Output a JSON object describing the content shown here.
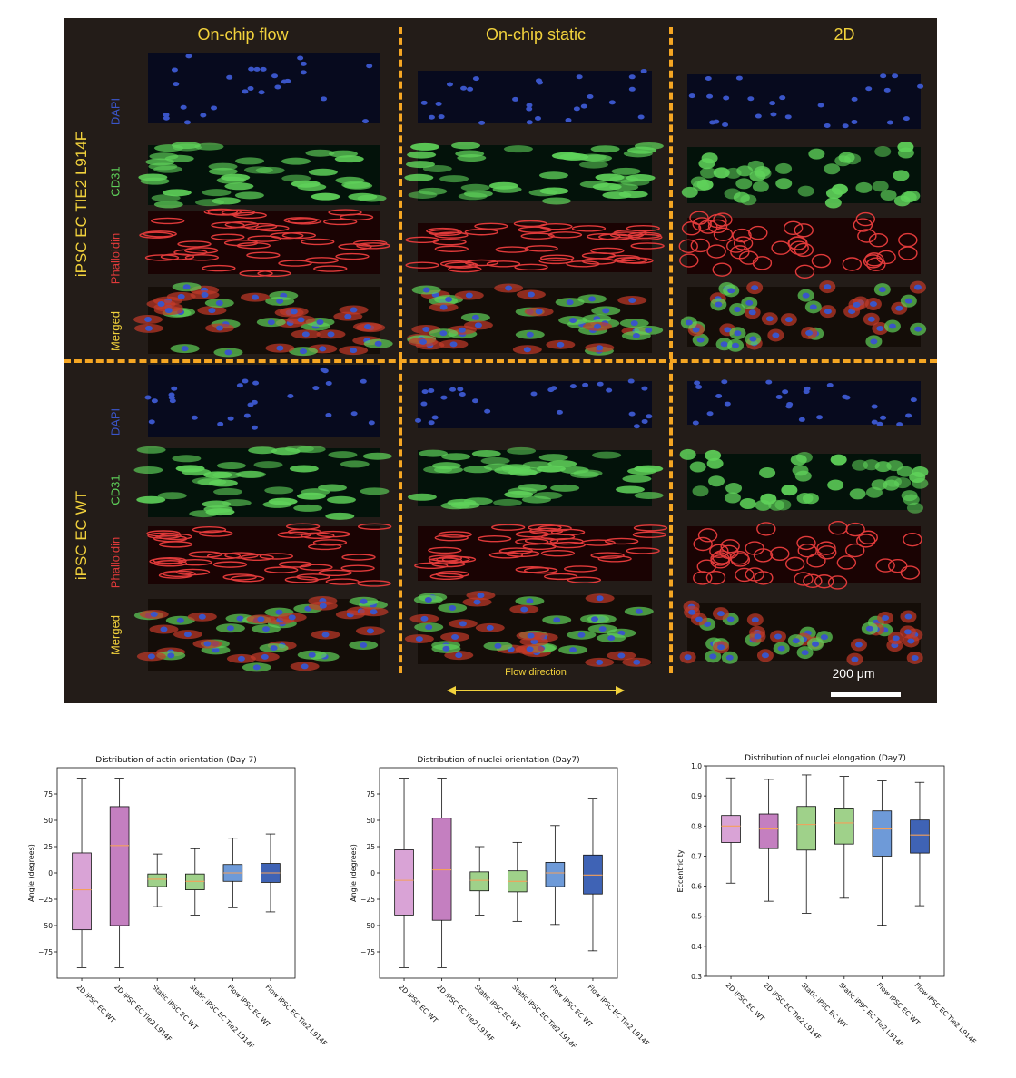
{
  "micrograph": {
    "columns": [
      "On-chip flow",
      "On-chip static",
      "2D"
    ],
    "rows": [
      {
        "label": "iPSC EC TIE2 L914F",
        "channels": [
          "DAPI",
          "CD31",
          "Phalloidin",
          "Merged"
        ]
      },
      {
        "label": "iPSC EC WT",
        "channels": [
          "DAPI",
          "CD31",
          "Phalloidin",
          "Merged"
        ]
      }
    ],
    "flow_direction_label": "Flow direction",
    "scale_bar_label": "200 μm",
    "colors": {
      "dapi": "#3a55c8",
      "cd31": "#5fd25a",
      "phalloidin": "#e03a3a",
      "merged": "#f2d23c",
      "separator": "#f5a623"
    }
  },
  "chart_data": [
    {
      "type": "box",
      "title": "Distribution of actin orientation (Day 7)",
      "ylabel": "Angle (degrees)",
      "ylim": [
        -100,
        100
      ],
      "yticks": [
        -75,
        -50,
        -25,
        0,
        25,
        50,
        75
      ],
      "ytick_labels": [
        "−75",
        "−50",
        "−25",
        "0",
        "25",
        "50",
        "75"
      ],
      "categories": [
        "2D iPSC EC WT",
        "2D iPSC EC Tie2 L914F",
        "Static iPSC EC WT",
        "Static iPSC EC Tie2 L914F",
        "Flow iPSC EC WT",
        "Flow iPSC EC Tie2 L914F"
      ],
      "colors": [
        "#d9a3d6",
        "#c47fc0",
        "#9fd18a",
        "#9fd18a",
        "#6e9ad8",
        "#3f63b5"
      ],
      "median_color": "#f5a05a",
      "boxes": [
        {
          "whislo": -90,
          "q1": -54,
          "med": -16,
          "q3": 19,
          "whishi": 90
        },
        {
          "whislo": -90,
          "q1": -50,
          "med": 26,
          "q3": 63,
          "whishi": 90
        },
        {
          "whislo": -32,
          "q1": -13,
          "med": -6,
          "q3": -1,
          "whishi": 18
        },
        {
          "whislo": -40,
          "q1": -16,
          "med": -8,
          "q3": -1,
          "whishi": 23
        },
        {
          "whislo": -33,
          "q1": -8,
          "med": 0,
          "q3": 8,
          "whishi": 33
        },
        {
          "whislo": -37,
          "q1": -9,
          "med": 0,
          "q3": 9,
          "whishi": 37
        }
      ]
    },
    {
      "type": "box",
      "title": "Distribution of nuclei orientation (Day7)",
      "ylabel": "Angle (degrees)",
      "ylim": [
        -100,
        100
      ],
      "yticks": [
        -75,
        -50,
        -25,
        0,
        25,
        50,
        75
      ],
      "ytick_labels": [
        "−75",
        "−50",
        "−25",
        "0",
        "25",
        "50",
        "75"
      ],
      "categories": [
        "2D iPSC EC WT",
        "2D iPSC EC Tie2 L914F",
        "Static iPSC EC WT",
        "Static iPSC EC Tie2 L914F",
        "Flow iPSC EC WT",
        "Flow iPSC EC Tie2 L914F"
      ],
      "colors": [
        "#d9a3d6",
        "#c47fc0",
        "#9fd18a",
        "#9fd18a",
        "#6e9ad8",
        "#3f63b5"
      ],
      "median_color": "#f5a05a",
      "boxes": [
        {
          "whislo": -90,
          "q1": -40,
          "med": -7,
          "q3": 22,
          "whishi": 90
        },
        {
          "whislo": -90,
          "q1": -45,
          "med": 3,
          "q3": 52,
          "whishi": 90
        },
        {
          "whislo": -40,
          "q1": -17,
          "med": -7,
          "q3": 1,
          "whishi": 25
        },
        {
          "whislo": -46,
          "q1": -18,
          "med": -8,
          "q3": 2,
          "whishi": 29
        },
        {
          "whislo": -49,
          "q1": -13,
          "med": 0,
          "q3": 10,
          "whishi": 45
        },
        {
          "whislo": -74,
          "q1": -20,
          "med": -2,
          "q3": 17,
          "whishi": 71
        }
      ]
    },
    {
      "type": "box",
      "title": "Distribution of nuclei elongation (Day7)",
      "ylabel": "Eccentricity",
      "ylim": [
        0.3,
        1.0
      ],
      "yticks": [
        0.3,
        0.4,
        0.5,
        0.6,
        0.7,
        0.8,
        0.9,
        1.0
      ],
      "ytick_labels": [
        "0.3",
        "0.4",
        "0.5",
        "0.6",
        "0.7",
        "0.8",
        "0.9",
        "1.0"
      ],
      "categories": [
        "2D iPSC EC WT",
        "2D iPSC EC Tie2 L914F",
        "Static iPSC EC WT",
        "Static iPSC EC Tie2 L914F",
        "Flow iPSC EC WT",
        "Flow iPSC EC Tie2 L914F"
      ],
      "colors": [
        "#d9a3d6",
        "#c47fc0",
        "#9fd18a",
        "#9fd18a",
        "#6e9ad8",
        "#3f63b5"
      ],
      "median_color": "#f5a05a",
      "boxes": [
        {
          "whislo": 0.61,
          "q1": 0.745,
          "med": 0.8,
          "q3": 0.835,
          "whishi": 0.96
        },
        {
          "whislo": 0.55,
          "q1": 0.725,
          "med": 0.79,
          "q3": 0.84,
          "whishi": 0.955
        },
        {
          "whislo": 0.51,
          "q1": 0.72,
          "med": 0.805,
          "q3": 0.865,
          "whishi": 0.97
        },
        {
          "whislo": 0.56,
          "q1": 0.74,
          "med": 0.81,
          "q3": 0.86,
          "whishi": 0.965
        },
        {
          "whislo": 0.47,
          "q1": 0.7,
          "med": 0.79,
          "q3": 0.85,
          "whishi": 0.95
        },
        {
          "whislo": 0.535,
          "q1": 0.71,
          "med": 0.77,
          "q3": 0.82,
          "whishi": 0.945
        }
      ]
    }
  ]
}
